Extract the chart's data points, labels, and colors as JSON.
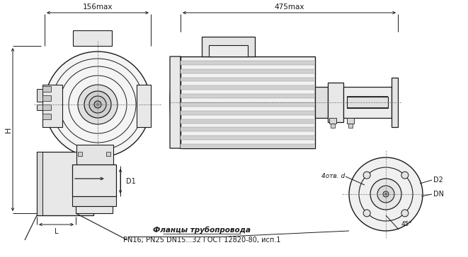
{
  "bg_color": "#ffffff",
  "line_color": "#1a1a1a",
  "dim_color": "#1a1a1a",
  "dim_156": "156max",
  "dim_475": "475max",
  "label_H": "H",
  "label_D1": "D1",
  "label_L": "L",
  "label_4otv": "4отв. d",
  "label_D2": "D2",
  "label_DN": "DN",
  "label_45": "45°",
  "footnote_line1": "Фланцы трубопровода",
  "footnote_line2": "PN16; PN25 DN15...32 ГОСТ 12820-80, исп.1",
  "fig_width": 6.61,
  "fig_height": 3.64
}
